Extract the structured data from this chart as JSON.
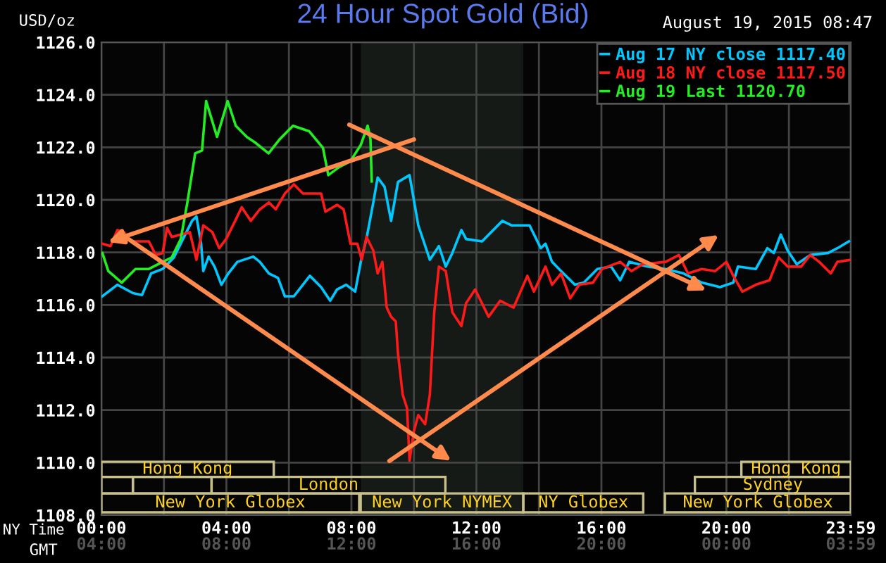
{
  "chart_data": {
    "type": "line",
    "title": "24 Hour Spot Gold (Bid)",
    "subtitle": "August 19, 2015 08:47",
    "ylabel": "USD/oz",
    "xlabel": "NY Time",
    "xlim": [
      0,
      23.98
    ],
    "ylim": [
      1108,
      1126
    ],
    "xticks": [
      {
        "value": 0,
        "label": "00:00"
      },
      {
        "value": 2,
        "label": null
      },
      {
        "value": 4,
        "label": "04:00"
      },
      {
        "value": 6,
        "label": null
      },
      {
        "value": 8,
        "label": "08:00"
      },
      {
        "value": 10,
        "label": null
      },
      {
        "value": 12,
        "label": "12:00"
      },
      {
        "value": 14,
        "label": null
      },
      {
        "value": 16,
        "label": "16:00"
      },
      {
        "value": 18,
        "label": null
      },
      {
        "value": 20,
        "label": "20:00"
      },
      {
        "value": 22,
        "label": null
      },
      {
        "value": 23.98,
        "label": "23:59"
      }
    ],
    "yticks": [
      {
        "value": 1108,
        "label": "1108.0"
      },
      {
        "value": 1110,
        "label": "1110.0"
      },
      {
        "value": 1112,
        "label": "1112.0"
      },
      {
        "value": 1114,
        "label": "1114.0"
      },
      {
        "value": 1116,
        "label": "1116.0"
      },
      {
        "value": 1118,
        "label": "1118.0"
      },
      {
        "value": 1120,
        "label": "1120.0"
      },
      {
        "value": 1122,
        "label": "1122.0"
      },
      {
        "value": 1124,
        "label": "1124.0"
      },
      {
        "value": 1126,
        "label": "1126.0"
      }
    ],
    "grid": true,
    "legend": "top right",
    "line_style": "solid",
    "marker": "none",
    "bands": [
      {
        "axis": "x",
        "from": 8.3,
        "to": 13.5,
        "label": null,
        "color": "#161a16"
      }
    ],
    "annotations": [
      "Hong Kong",
      "London",
      "New York Globex",
      "New York NYMEX",
      "NY Globex",
      "New York Globex",
      "Sydney",
      "Hong Kong",
      "GMT",
      "04:00",
      "08:00",
      "12:00",
      "16:00",
      "20:00",
      "00:00",
      "03:59"
    ],
    "series": [
      {
        "name": "Aug 17 NY close 1117.40",
        "color": "#00c8ff",
        "x": [
          0.03,
          0.51,
          1.01,
          1.3,
          1.59,
          1.96,
          2.32,
          2.61,
          2.9,
          3.04,
          3.19,
          3.26,
          3.43,
          3.62,
          3.84,
          4.06,
          4.35,
          4.86,
          5.07,
          5.36,
          5.65,
          5.87,
          6.16,
          6.67,
          7.03,
          7.32,
          7.54,
          7.83,
          8.12,
          8.3,
          8.48,
          8.7,
          8.84,
          9.06,
          9.27,
          9.49,
          9.86,
          10.14,
          10.51,
          10.8,
          11.02,
          11.23,
          11.52,
          11.67,
          12.18,
          12.83,
          13.12,
          13.7,
          14.06,
          14.21,
          14.42,
          14.71,
          15.15,
          15.44,
          15.87,
          16.31,
          16.6,
          16.89,
          17.47,
          18.05,
          18.63,
          19.21,
          19.79,
          20.22,
          20.37,
          20.94,
          21.31,
          21.52,
          21.74,
          21.96,
          22.25,
          22.68,
          23.26,
          23.55,
          23.92
        ],
        "values": [
          1116.33,
          1116.77,
          1116.45,
          1116.38,
          1117.2,
          1117.37,
          1117.81,
          1118.51,
          1119.2,
          1119.37,
          1118.33,
          1117.29,
          1117.84,
          1117.46,
          1116.77,
          1117.2,
          1117.64,
          1117.84,
          1117.64,
          1117.2,
          1117.03,
          1116.33,
          1116.33,
          1117.11,
          1116.68,
          1116.16,
          1116.59,
          1116.77,
          1116.51,
          1117.64,
          1118.51,
          1119.9,
          1120.85,
          1120.5,
          1119.2,
          1120.68,
          1120.94,
          1119.03,
          1117.72,
          1118.24,
          1117.46,
          1117.98,
          1118.85,
          1118.51,
          1118.42,
          1119.2,
          1119.03,
          1119.03,
          1118.16,
          1118.33,
          1117.64,
          1117.29,
          1116.77,
          1116.85,
          1117.37,
          1117.46,
          1116.94,
          1117.64,
          1117.46,
          1117.37,
          1117.2,
          1116.85,
          1116.68,
          1116.85,
          1117.46,
          1117.37,
          1118.16,
          1117.98,
          1118.68,
          1118.07,
          1117.55,
          1117.9,
          1117.98,
          1118.16,
          1118.42
        ]
      },
      {
        "name": "Aug 18 NY close 1117.50",
        "color": "#ff1a1a",
        "x": [
          0.03,
          0.29,
          0.51,
          0.72,
          0.94,
          1.52,
          1.74,
          1.96,
          2.1,
          2.25,
          2.54,
          2.83,
          3.04,
          3.26,
          3.55,
          3.77,
          3.99,
          4.28,
          4.49,
          4.78,
          5.07,
          5.36,
          5.58,
          5.87,
          6.16,
          6.45,
          7.03,
          7.17,
          7.54,
          7.75,
          7.97,
          8.19,
          8.33,
          8.48,
          8.7,
          8.84,
          8.99,
          9.13,
          9.27,
          9.42,
          9.49,
          9.64,
          9.78,
          9.86,
          10.0,
          10.14,
          10.36,
          10.51,
          10.65,
          10.8,
          11.02,
          11.23,
          11.52,
          11.67,
          11.96,
          12.39,
          12.76,
          13.19,
          13.63,
          13.84,
          14.21,
          14.42,
          14.71,
          15.0,
          15.29,
          15.73,
          16.02,
          16.6,
          16.96,
          17.32,
          18.05,
          18.48,
          18.77,
          19.21,
          19.64,
          20.0,
          20.22,
          20.51,
          20.94,
          21.38,
          21.67,
          21.96,
          22.39,
          22.68,
          22.97,
          23.34,
          23.55,
          23.98
        ],
        "values": [
          1118.33,
          1118.24,
          1118.85,
          1118.77,
          1118.42,
          1118.42,
          1117.9,
          1117.98,
          1118.94,
          1118.59,
          1118.68,
          1118.77,
          1117.72,
          1119.03,
          1118.77,
          1118.16,
          1118.51,
          1119.2,
          1119.72,
          1119.2,
          1119.64,
          1119.9,
          1119.64,
          1120.24,
          1120.59,
          1120.24,
          1120.24,
          1119.55,
          1119.81,
          1119.64,
          1118.33,
          1118.33,
          1117.72,
          1118.59,
          1118.07,
          1117.2,
          1117.64,
          1115.9,
          1115.55,
          1115.37,
          1114.16,
          1112.59,
          1112.07,
          1110.07,
          1111.2,
          1111.81,
          1111.46,
          1112.59,
          1115.72,
          1117.46,
          1117.29,
          1115.72,
          1115.2,
          1116.07,
          1116.59,
          1115.55,
          1116.16,
          1115.9,
          1117.11,
          1116.51,
          1117.46,
          1116.77,
          1117.2,
          1116.25,
          1116.77,
          1116.85,
          1117.37,
          1117.64,
          1117.29,
          1117.55,
          1117.64,
          1117.9,
          1117.2,
          1117.37,
          1117.29,
          1117.64,
          1117.11,
          1116.51,
          1116.77,
          1116.94,
          1117.81,
          1117.46,
          1117.46,
          1117.9,
          1117.64,
          1117.2,
          1117.64,
          1117.72
        ]
      },
      {
        "name": "Aug 19 Last 1120.70",
        "color": "#22ee22",
        "x": [
          0.03,
          0.22,
          0.65,
          1.09,
          1.52,
          1.96,
          2.25,
          2.54,
          2.75,
          3.0,
          3.22,
          3.35,
          3.7,
          4.04,
          4.3,
          4.65,
          4.91,
          5.35,
          5.7,
          6.13,
          6.65,
          7.09,
          7.26,
          7.61,
          7.96,
          8.3,
          8.52,
          8.61,
          8.65
        ],
        "values": [
          1117.98,
          1117.29,
          1116.85,
          1117.37,
          1117.37,
          1117.64,
          1117.81,
          1118.51,
          1119.9,
          1121.77,
          1121.88,
          1123.76,
          1122.4,
          1123.76,
          1122.82,
          1122.4,
          1122.19,
          1121.77,
          1122.3,
          1122.82,
          1122.61,
          1121.98,
          1120.94,
          1121.25,
          1121.46,
          1122.09,
          1122.82,
          1122.3,
          1120.7
        ]
      }
    ]
  }
}
